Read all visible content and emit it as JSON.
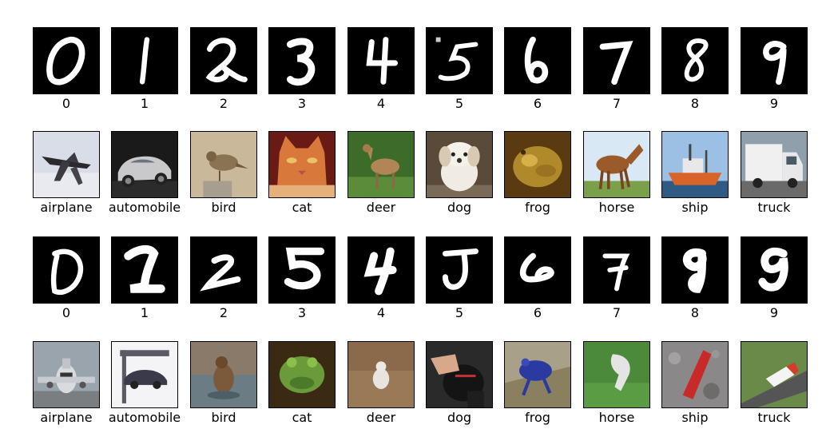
{
  "panels": [
    {
      "dataset_role": "digits-row-1",
      "tiles": [
        {
          "label": "0",
          "kind": "digit",
          "icon": "digit-0-image"
        },
        {
          "label": "1",
          "kind": "digit",
          "icon": "digit-1-image"
        },
        {
          "label": "2",
          "kind": "digit",
          "icon": "digit-2-image"
        },
        {
          "label": "3",
          "kind": "digit",
          "icon": "digit-3-image"
        },
        {
          "label": "4",
          "kind": "digit",
          "icon": "digit-4-image"
        },
        {
          "label": "5",
          "kind": "digit",
          "icon": "digit-5-image"
        },
        {
          "label": "6",
          "kind": "digit",
          "icon": "digit-6-image"
        },
        {
          "label": "7",
          "kind": "digit",
          "icon": "digit-7-image"
        },
        {
          "label": "8",
          "kind": "digit",
          "icon": "digit-8-image"
        },
        {
          "label": "9",
          "kind": "digit",
          "icon": "digit-9-image"
        }
      ]
    },
    {
      "dataset_role": "objects-row-1",
      "tiles": [
        {
          "label": "airplane",
          "kind": "object",
          "icon": "airplane-photo"
        },
        {
          "label": "automobile",
          "kind": "object",
          "icon": "automobile-photo"
        },
        {
          "label": "bird",
          "kind": "object",
          "icon": "bird-photo"
        },
        {
          "label": "cat",
          "kind": "object",
          "icon": "cat-photo"
        },
        {
          "label": "deer",
          "kind": "object",
          "icon": "deer-photo"
        },
        {
          "label": "dog",
          "kind": "object",
          "icon": "dog-photo"
        },
        {
          "label": "frog",
          "kind": "object",
          "icon": "frog-photo"
        },
        {
          "label": "horse",
          "kind": "object",
          "icon": "horse-photo"
        },
        {
          "label": "ship",
          "kind": "object",
          "icon": "ship-photo"
        },
        {
          "label": "truck",
          "kind": "object",
          "icon": "truck-photo"
        }
      ]
    },
    {
      "dataset_role": "digits-row-2",
      "tiles": [
        {
          "label": "0",
          "kind": "digit",
          "icon": "digit-0-image"
        },
        {
          "label": "1",
          "kind": "digit",
          "icon": "digit-1-image"
        },
        {
          "label": "2",
          "kind": "digit",
          "icon": "digit-2-image"
        },
        {
          "label": "3",
          "kind": "digit",
          "icon": "digit-3-image"
        },
        {
          "label": "4",
          "kind": "digit",
          "icon": "digit-4-image"
        },
        {
          "label": "5",
          "kind": "digit",
          "icon": "digit-5-image"
        },
        {
          "label": "6",
          "kind": "digit",
          "icon": "digit-6-image"
        },
        {
          "label": "7",
          "kind": "digit",
          "icon": "digit-7-image"
        },
        {
          "label": "8",
          "kind": "digit",
          "icon": "digit-8-image"
        },
        {
          "label": "9",
          "kind": "digit",
          "icon": "digit-9-image"
        }
      ]
    },
    {
      "dataset_role": "objects-row-2",
      "tiles": [
        {
          "label": "airplane",
          "kind": "object",
          "icon": "airplane-photo"
        },
        {
          "label": "automobile",
          "kind": "object",
          "icon": "automobile-photo"
        },
        {
          "label": "bird",
          "kind": "object",
          "icon": "bird-photo"
        },
        {
          "label": "cat",
          "kind": "object",
          "icon": "cat-photo"
        },
        {
          "label": "deer",
          "kind": "object",
          "icon": "deer-photo"
        },
        {
          "label": "dog",
          "kind": "object",
          "icon": "dog-photo"
        },
        {
          "label": "frog",
          "kind": "object",
          "icon": "frog-photo"
        },
        {
          "label": "horse",
          "kind": "object",
          "icon": "horse-photo"
        },
        {
          "label": "ship",
          "kind": "object",
          "icon": "ship-photo"
        },
        {
          "label": "truck",
          "kind": "object",
          "icon": "truck-photo"
        }
      ]
    }
  ]
}
